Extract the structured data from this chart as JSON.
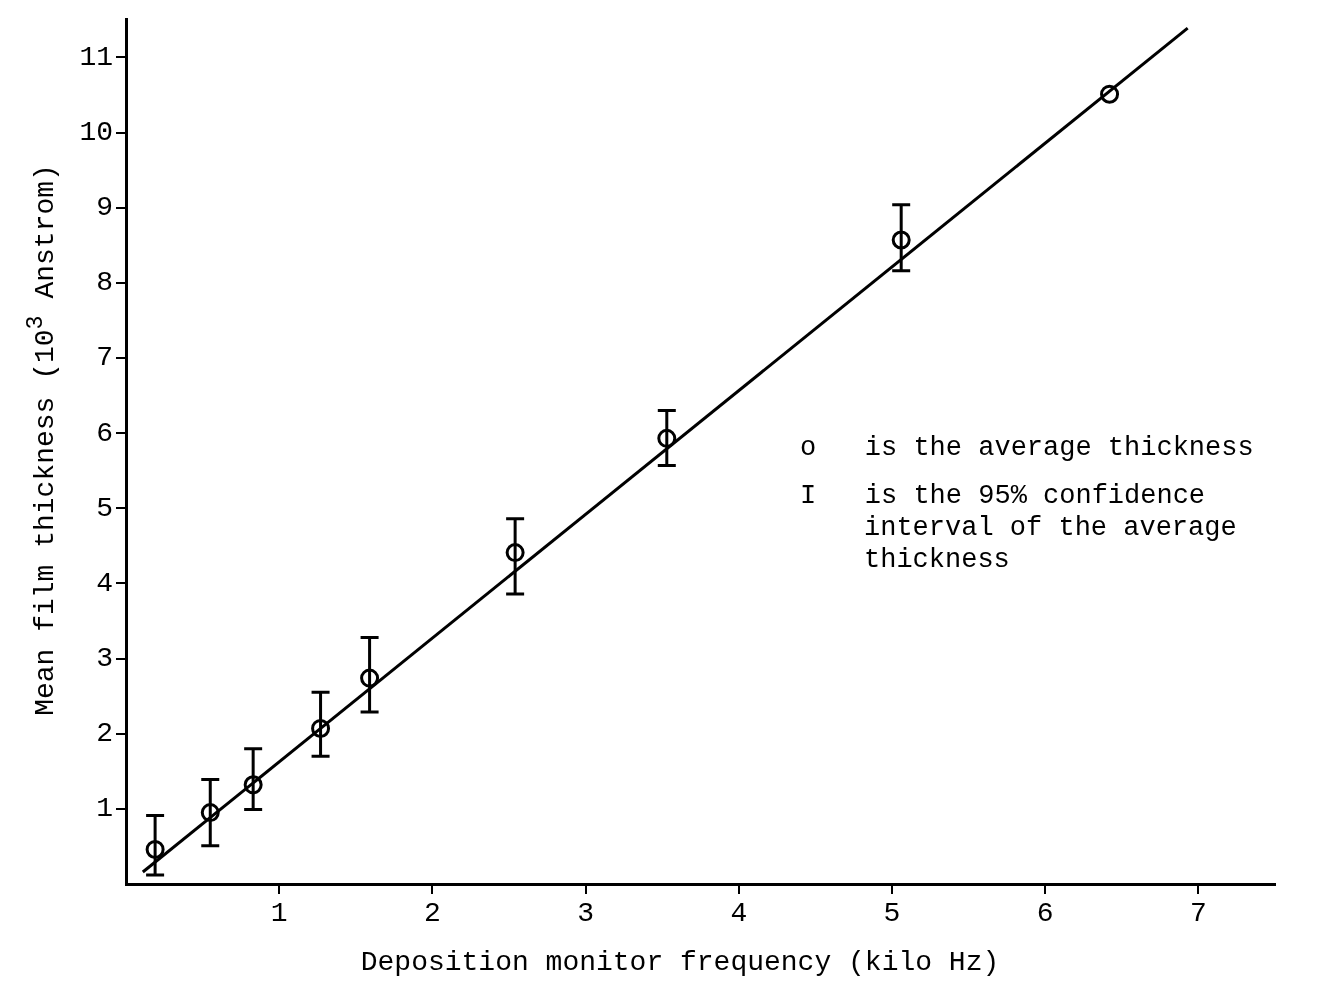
{
  "chart_data": {
    "type": "scatter",
    "xlabel": "Deposition monitor frequency (kilo Hz)",
    "ylabel": "Mean film thickness (10$^{3}$ Anstrom)",
    "xlim": [
      0,
      7.5
    ],
    "xticks": [
      1,
      2,
      3,
      4,
      5,
      6,
      7
    ],
    "ylim": [
      0,
      11.5
    ],
    "yticks": [
      1,
      2,
      3,
      4,
      5,
      6,
      7,
      8,
      9,
      10,
      11
    ],
    "grid": false,
    "legend": false,
    "marker": "circle",
    "annotations": [
      "o   is the average thickness",
      "I   is the 95% confidence interval of the average thickness"
    ],
    "series": [
      {
        "type": "scatter",
        "color": "#000000",
        "x": [
          0.19,
          0.55,
          0.83,
          1.27,
          1.59,
          2.54,
          3.53,
          5.06,
          6.42
        ],
        "values": [
          0.46,
          0.95,
          1.32,
          2.07,
          2.74,
          4.41,
          5.93,
          8.57,
          10.51
        ],
        "errors": [
          [
            0.12,
            0.91
          ],
          [
            0.51,
            1.39
          ],
          [
            0.99,
            1.8
          ],
          [
            1.7,
            2.55
          ],
          [
            2.29,
            3.28
          ],
          [
            3.86,
            4.86
          ],
          [
            5.57,
            6.3
          ],
          [
            8.16,
            9.04
          ],
          null
        ]
      },
      {
        "type": "line",
        "color": "#000000",
        "x": [
          0.11,
          6.93
        ],
        "values": [
          0.16,
          11.39
        ],
        "marker": "none",
        "line_style": "solid"
      }
    ]
  }
}
